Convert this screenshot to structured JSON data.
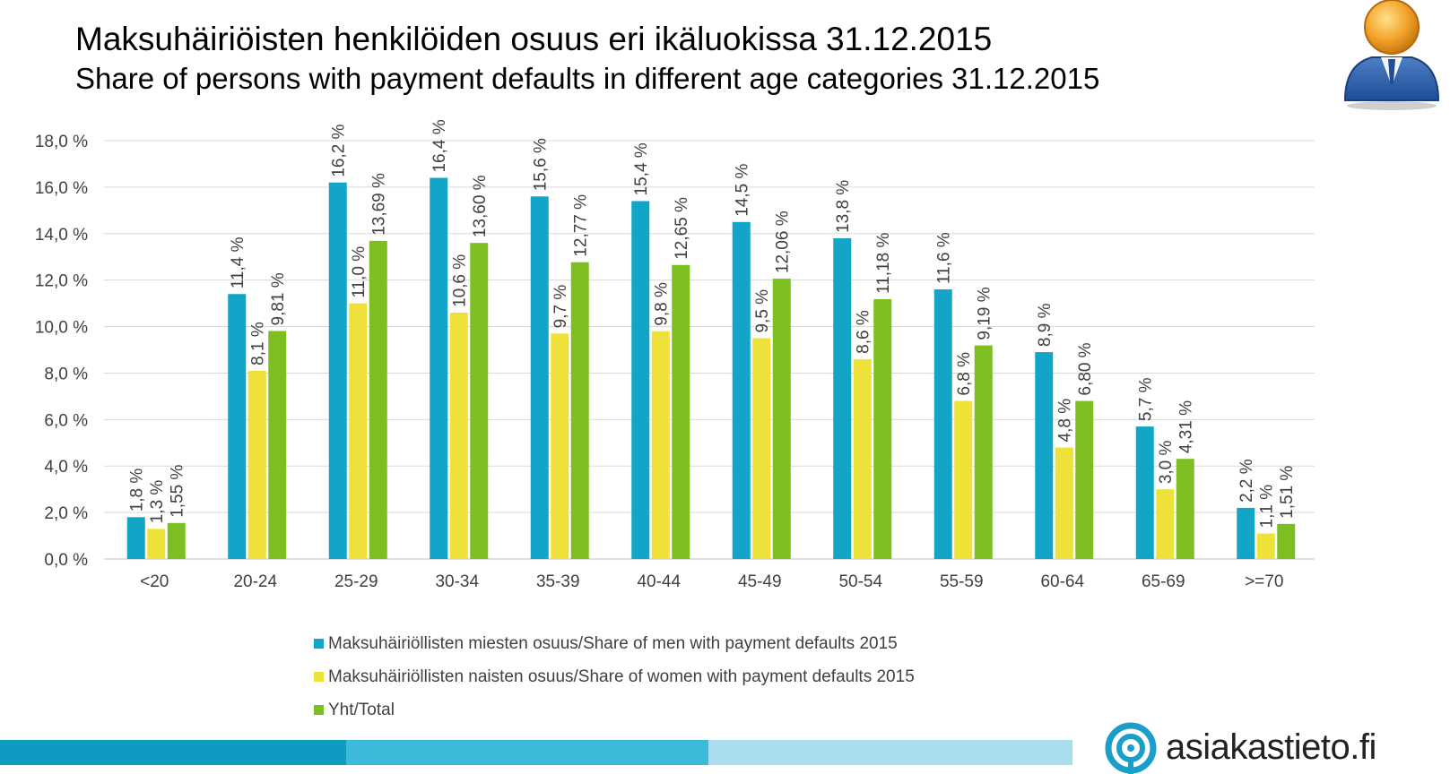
{
  "title": "Maksuhäiriöisten henkilöiden osuus eri ikäluokissa 31.12.2015",
  "subtitle": "Share of persons with payment defaults in different age categories 31.12.2015",
  "brand": {
    "name": "asiakastieto.fi"
  },
  "colors": {
    "men": "#12A5C8",
    "women": "#EDE13A",
    "total": "#7DBF23",
    "grid": "#D9D9D9",
    "axis_text": "#404040",
    "footer_dark": "#0D9BC0",
    "footer_mid": "#3DBADA",
    "footer_light": "#A9DCEC",
    "brand_blue": "#1A9FC9"
  },
  "icons": {
    "avatar": "user-avatar-icon",
    "brand": "asiakastieto-logo-icon"
  },
  "chart_data": {
    "type": "bar",
    "categories": [
      "<20",
      "20-24",
      "25-29",
      "30-34",
      "35-39",
      "40-44",
      "45-49",
      "50-54",
      "55-59",
      "60-64",
      "65-69",
      ">=70"
    ],
    "series": [
      {
        "name": "Maksuhäiriöllisten miesten osuus/Share of men with payment defaults 2015",
        "values": [
          1.8,
          11.4,
          16.2,
          16.4,
          15.6,
          15.4,
          14.5,
          13.8,
          11.6,
          8.9,
          5.7,
          2.2
        ],
        "labels": [
          "1,8 %",
          "11,4 %",
          "16,2 %",
          "16,4 %",
          "15,6 %",
          "15,4 %",
          "14,5 %",
          "13,8 %",
          "11,6 %",
          "8,9 %",
          "5,7 %",
          "2,2 %"
        ]
      },
      {
        "name": "Maksuhäiriöllisten naisten osuus/Share of women with payment defaults 2015",
        "values": [
          1.3,
          8.1,
          11.0,
          10.6,
          9.7,
          9.8,
          9.5,
          8.6,
          6.8,
          4.8,
          3.0,
          1.1
        ],
        "labels": [
          "1,3 %",
          "8,1 %",
          "11,0 %",
          "10,6 %",
          "9,7 %",
          "9,8 %",
          "9,5 %",
          "8,6 %",
          "6,8 %",
          "4,8 %",
          "3,0 %",
          "1,1 %"
        ]
      },
      {
        "name": "Yht/Total",
        "values": [
          1.55,
          9.81,
          13.69,
          13.6,
          12.77,
          12.65,
          12.06,
          11.18,
          9.19,
          6.8,
          4.31,
          1.51
        ],
        "labels": [
          "1,55 %",
          "9,81 %",
          "13,69 %",
          "13,60 %",
          "12,77 %",
          "12,65 %",
          "12,06 %",
          "11,18 %",
          "9,19 %",
          "6,80 %",
          "4,31 %",
          "1,51 %"
        ]
      }
    ],
    "yticks": [
      0,
      2,
      4,
      6,
      8,
      10,
      12,
      14,
      16,
      18
    ],
    "ytick_labels": [
      "0,0 %",
      "2,0 %",
      "4,0 %",
      "6,0 %",
      "8,0 %",
      "10,0 %",
      "12,0 %",
      "14,0 %",
      "16,0 %",
      "18,0 %"
    ],
    "ylim": [
      0,
      18
    ],
    "grid": true,
    "legend_position": "bottom",
    "data_labels": "rotated-vertical"
  }
}
